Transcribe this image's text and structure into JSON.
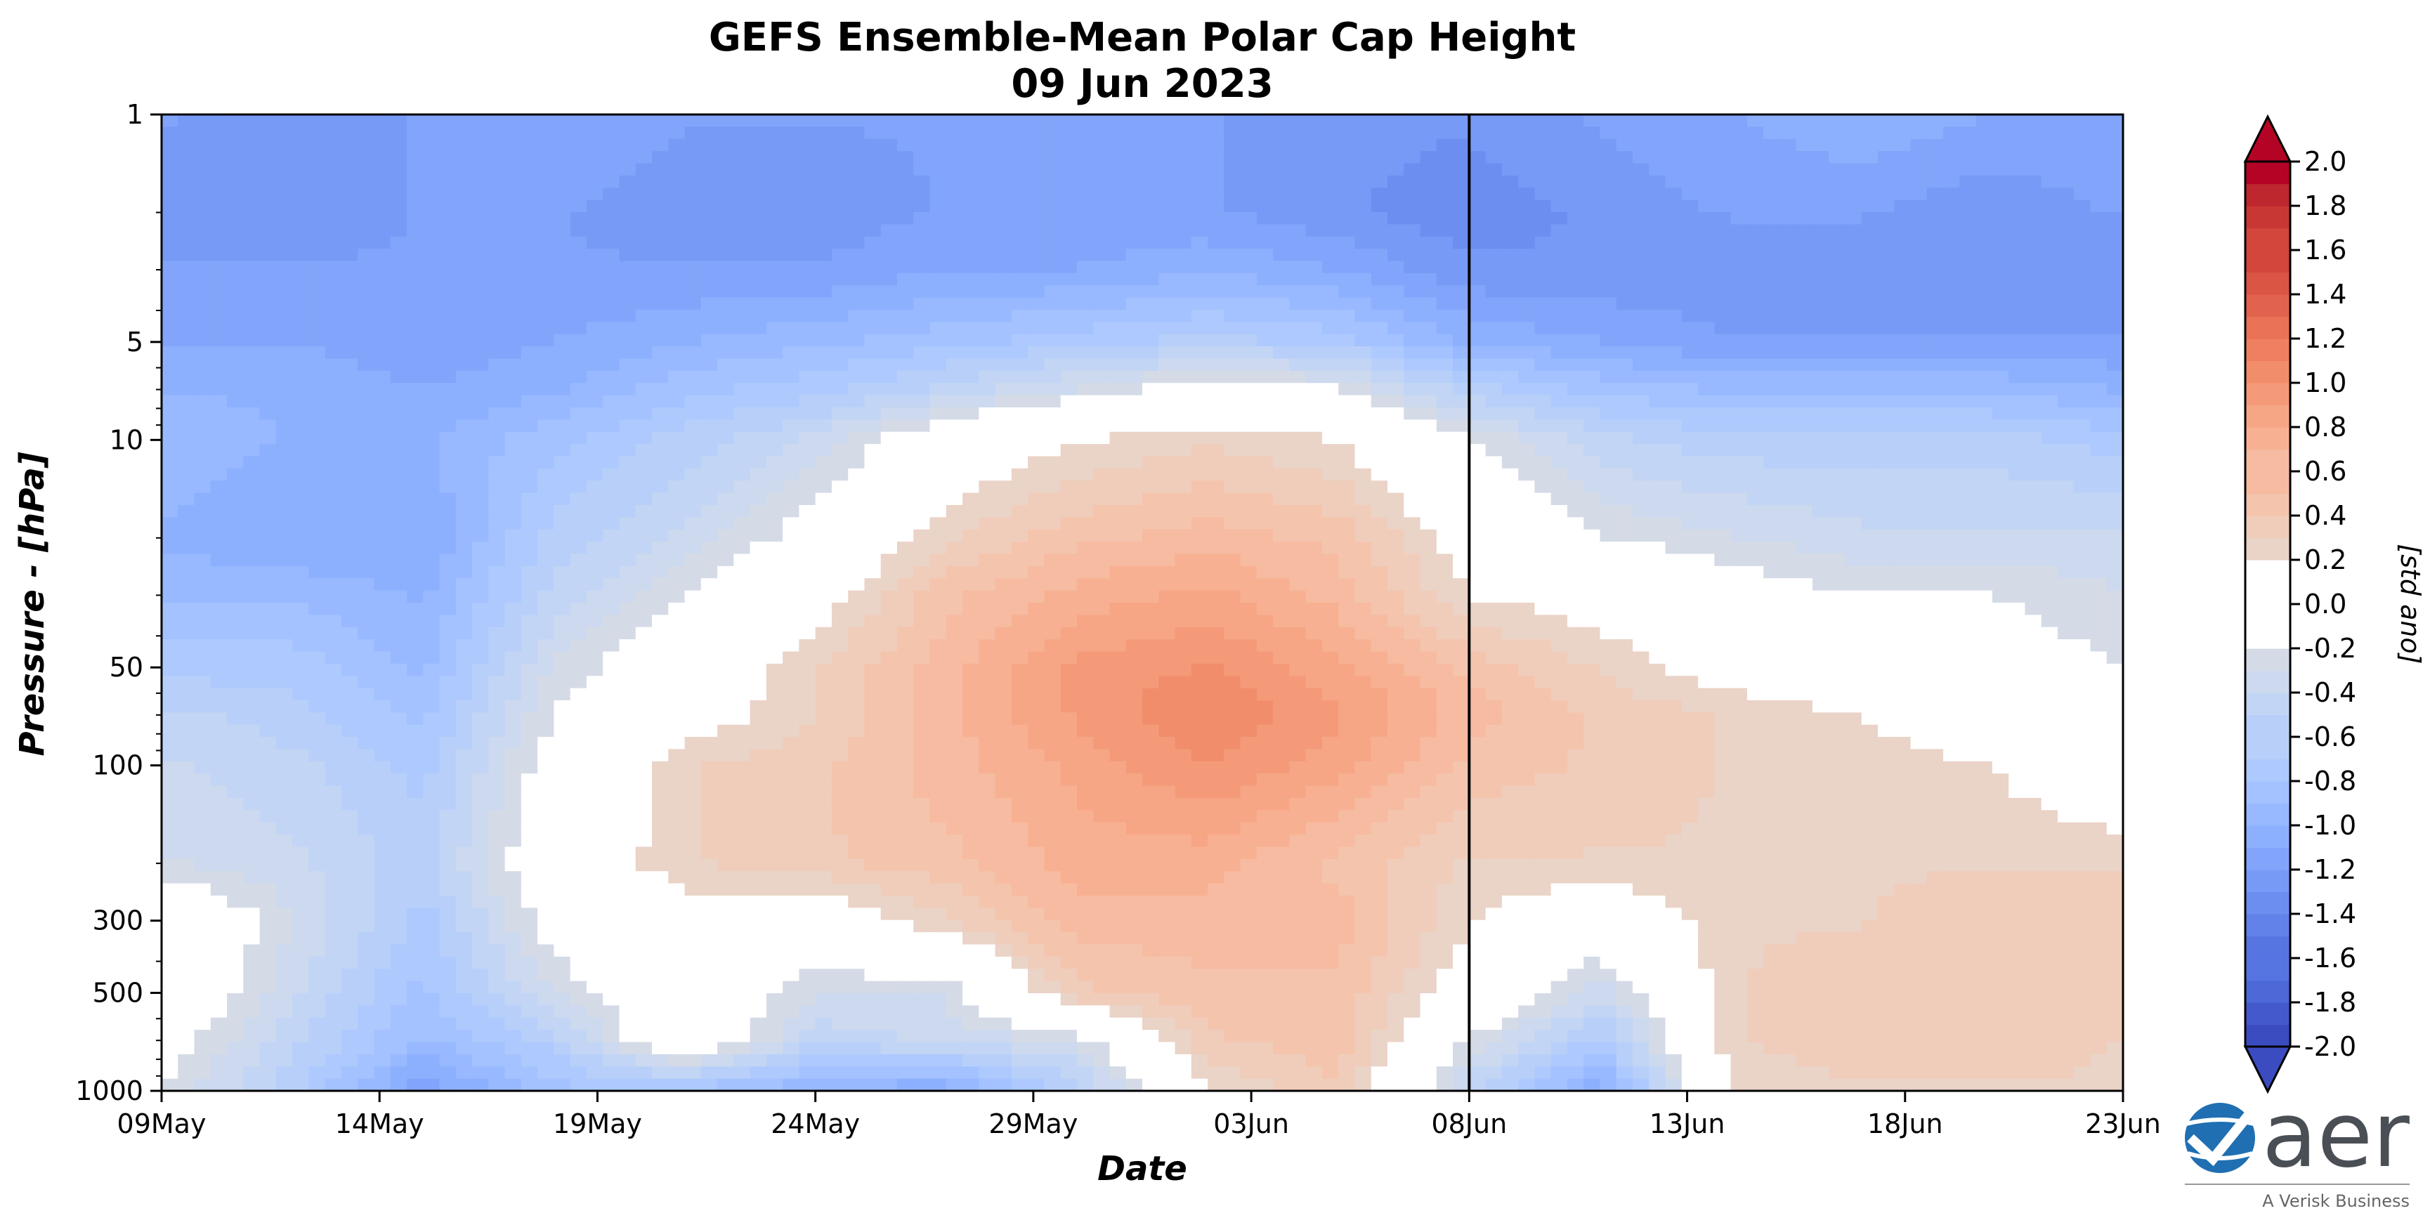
{
  "chart_data": {
    "type": "heatmap",
    "title": "GEFS Ensemble-Mean Polar Cap Height",
    "subtitle": "09 Jun 2023",
    "xlabel": "Date",
    "ylabel": "Pressure - [hPa]",
    "colorbar_label": "[std ano]",
    "x_ticks": [
      "09May",
      "14May",
      "19May",
      "24May",
      "29May",
      "03Jun",
      "08Jun",
      "13Jun",
      "18Jun",
      "23Jun"
    ],
    "x_range_days": [
      0,
      45
    ],
    "forecast_start_day": 30,
    "y_scale": "log",
    "y_range": [
      1000,
      1
    ],
    "y_ticks": [
      1,
      5,
      10,
      50,
      100,
      300,
      500,
      1000
    ],
    "levels": [
      -2.0,
      -1.9,
      -1.8,
      -1.7,
      -1.6,
      -1.5,
      -1.4,
      -1.3,
      -1.2,
      -1.1,
      -1.0,
      -0.9,
      -0.8,
      -0.7,
      -0.6,
      -0.5,
      -0.4,
      -0.3,
      -0.2,
      0.2,
      0.3,
      0.4,
      0.5,
      0.6,
      0.7,
      0.8,
      0.9,
      1.0,
      1.1,
      1.2,
      1.3,
      1.4,
      1.5,
      1.6,
      1.7,
      1.8,
      1.9,
      2.0
    ],
    "colorbar_ticks": [
      "2.0",
      "1.8",
      "1.6",
      "1.4",
      "1.2",
      "1.0",
      "0.8",
      "0.6",
      "0.4",
      "0.2",
      "0.0",
      "-0.2",
      "-0.4",
      "-0.6",
      "-0.8",
      "-1.0",
      "-1.2",
      "-1.4",
      "-1.6",
      "-1.8",
      "-2.0"
    ],
    "colormap": "coolwarm",
    "center_color": "#ffffff",
    "pressure_levels": [
      1000,
      700,
      500,
      300,
      200,
      100,
      70,
      50,
      30,
      20,
      10,
      7,
      5,
      3,
      2,
      1
    ],
    "days": [
      0,
      3,
      6,
      9,
      12,
      15,
      18,
      21,
      24,
      27,
      30,
      33,
      36,
      39,
      42,
      45
    ],
    "values": [
      [
        -0.2,
        -0.6,
        -1.2,
        -0.8,
        -0.8,
        -1.0,
        -1.1,
        -0.6,
        0.2,
        0.4,
        -0.5,
        -1.1,
        0.2,
        0.3,
        0.3,
        0.3
      ],
      [
        -0.1,
        -0.5,
        -0.9,
        -0.6,
        0.1,
        -0.5,
        -0.4,
        -0.3,
        0.4,
        0.5,
        -0.2,
        -0.7,
        0.3,
        0.4,
        0.4,
        0.3
      ],
      [
        0.1,
        -0.4,
        -0.8,
        -0.3,
        0.0,
        -0.3,
        -0.3,
        0.4,
        0.5,
        0.5,
        0.1,
        -0.4,
        0.3,
        0.4,
        0.4,
        0.4
      ],
      [
        0.1,
        -0.3,
        -0.7,
        -0.1,
        0.1,
        0.0,
        0.3,
        0.6,
        0.6,
        0.6,
        0.2,
        0.0,
        0.3,
        0.3,
        0.4,
        0.4
      ],
      [
        -0.3,
        -0.4,
        -0.6,
        0.0,
        0.3,
        0.4,
        0.5,
        0.7,
        0.7,
        0.5,
        0.3,
        0.3,
        0.3,
        0.3,
        0.3,
        0.3
      ],
      [
        -0.4,
        -0.5,
        -0.7,
        -0.1,
        0.3,
        0.4,
        0.6,
        0.8,
        1.0,
        0.8,
        0.5,
        0.4,
        0.3,
        0.3,
        0.2,
        0.0
      ],
      [
        -0.5,
        -0.6,
        -0.8,
        -0.2,
        0.1,
        0.3,
        0.6,
        0.9,
        1.1,
        0.9,
        0.6,
        0.4,
        0.3,
        0.2,
        0.0,
        -0.1
      ],
      [
        -0.7,
        -0.7,
        -0.9,
        -0.3,
        0.0,
        0.3,
        0.6,
        0.9,
        1.0,
        0.8,
        0.5,
        0.3,
        0.1,
        0.0,
        -0.1,
        -0.2
      ],
      [
        -0.9,
        -0.9,
        -1.0,
        -0.5,
        -0.2,
        0.1,
        0.5,
        0.7,
        0.8,
        0.6,
        0.2,
        0.1,
        -0.1,
        -0.2,
        -0.2,
        -0.3
      ],
      [
        -1.0,
        -1.1,
        -1.1,
        -0.6,
        -0.4,
        -0.1,
        0.3,
        0.5,
        0.6,
        0.5,
        0.1,
        -0.2,
        -0.3,
        -0.4,
        -0.4,
        -0.4
      ],
      [
        -0.9,
        -1.0,
        -1.0,
        -0.8,
        -0.6,
        -0.4,
        0.0,
        0.2,
        0.3,
        0.2,
        -0.2,
        -0.5,
        -0.6,
        -0.6,
        -0.6,
        -0.7
      ],
      [
        -1.0,
        -1.0,
        -1.1,
        -1.0,
        -0.8,
        -0.7,
        -0.5,
        -0.3,
        -0.1,
        -0.2,
        -0.6,
        -0.8,
        -0.9,
        -0.9,
        -0.9,
        -1.0
      ],
      [
        -1.1,
        -1.1,
        -1.2,
        -1.1,
        -1.0,
        -0.9,
        -0.8,
        -0.7,
        -0.6,
        -0.7,
        -1.0,
        -1.1,
        -1.2,
        -1.2,
        -1.2,
        -1.2
      ],
      [
        -1.2,
        -1.2,
        -1.2,
        -1.2,
        -1.2,
        -1.2,
        -1.1,
        -1.1,
        -1.0,
        -1.1,
        -1.3,
        -1.3,
        -1.3,
        -1.3,
        -1.3,
        -1.3
      ],
      [
        -1.3,
        -1.3,
        -1.2,
        -1.2,
        -1.3,
        -1.3,
        -1.2,
        -1.2,
        -1.2,
        -1.3,
        -1.4,
        -1.3,
        -1.2,
        -1.2,
        -1.3,
        -1.2
      ],
      [
        -1.2,
        -1.3,
        -1.2,
        -1.1,
        -1.2,
        -1.2,
        -1.2,
        -1.2,
        -1.2,
        -1.3,
        -1.3,
        -1.2,
        -1.1,
        -1.0,
        -1.1,
        -1.1
      ]
    ]
  },
  "logo": {
    "name": "aer",
    "tagline": "A Verisk Business",
    "color_primary": "#1f6fb2"
  }
}
